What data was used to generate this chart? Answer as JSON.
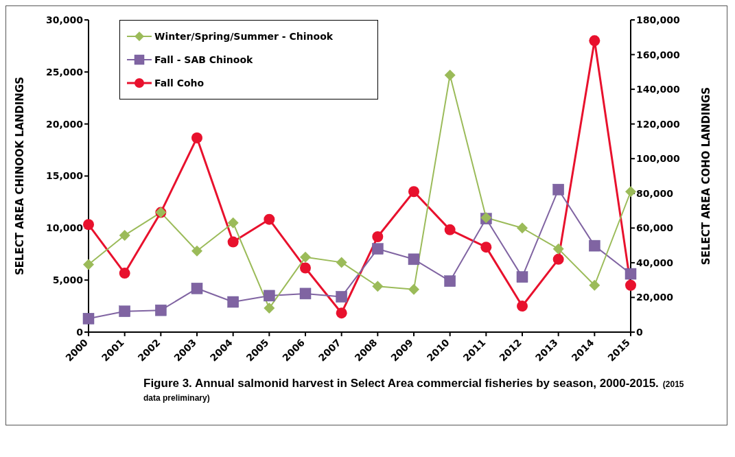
{
  "chart_data": {
    "type": "line",
    "categories": [
      "2000",
      "2001",
      "2002",
      "2003",
      "2004",
      "2005",
      "2006",
      "2007",
      "2008",
      "2009",
      "2010",
      "2011",
      "2012",
      "2013",
      "2014",
      "2015"
    ],
    "ylabel": "SELECT AREA CHINOOK LANDINGS",
    "y2label": "SELECT AREA COHO LANDINGS",
    "ylim": [
      0,
      30000
    ],
    "yticks": [
      0,
      {
        "value": 5000,
        "label": "5,000"
      },
      {
        "value": 10000,
        "label": "10,000"
      },
      {
        "value": 15000,
        "label": "15,000"
      },
      {
        "value": 20000,
        "label": "20,000"
      },
      {
        "value": 25000,
        "label": "25,000"
      },
      {
        "value": 30000,
        "label": "30,000"
      }
    ],
    "y2lim": [
      0,
      180000
    ],
    "y2ticks": [
      0,
      {
        "value": 20000,
        "label": "20,000"
      },
      {
        "value": 40000,
        "label": "40,000"
      },
      {
        "value": 60000,
        "label": "60,000"
      },
      {
        "value": 80000,
        "label": "80,000"
      },
      {
        "value": 100000,
        "label": "100,000"
      },
      {
        "value": 120000,
        "label": "120,000"
      },
      {
        "value": 140000,
        "label": "140,000"
      },
      {
        "value": 160000,
        "label": "160,000"
      },
      {
        "value": 180000,
        "label": "180,000"
      }
    ],
    "grid": false,
    "legend": "top left",
    "series": [
      {
        "name": "Winter/Spring/Summer - Chinook",
        "color": "#9bbb59",
        "marker": "diamond",
        "values": [
          6500,
          9300,
          11500,
          7800,
          10500,
          2300,
          7200,
          6700,
          4400,
          4100,
          24700,
          11000,
          10000,
          8000,
          4500,
          13500
        ]
      },
      {
        "name": "Fall - SAB Chinook",
        "color": "#8064a2",
        "marker": "square",
        "values": [
          1300,
          2000,
          2100,
          4200,
          2900,
          3500,
          3700,
          3400,
          8000,
          7000,
          4900,
          10900,
          5300,
          13700,
          8300,
          5600
        ]
      },
      {
        "name": "Fall Coho",
        "color": "#e8112d",
        "marker": "circle",
        "axis": "y2",
        "values": [
          62000,
          34000,
          69000,
          112000,
          52000,
          65000,
          37000,
          11000,
          55000,
          81000,
          59000,
          49000,
          15000,
          42000,
          168000,
          27000
        ]
      }
    ],
    "annotations": [
      "Figure 3.  Annual salmonid harvest in Select Area commercial fisheries by season, 2000-2015.",
      "(2015 data preliminary)"
    ]
  }
}
